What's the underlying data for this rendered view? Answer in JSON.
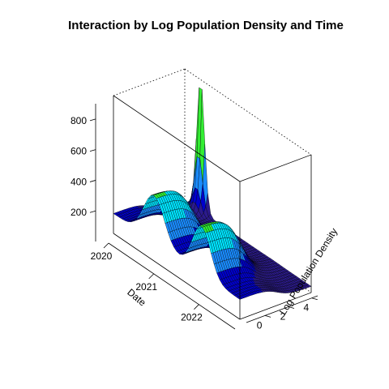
{
  "chart_data": {
    "type": "surface3d",
    "title": "Interaction by Log Population Density and Time",
    "xlabel": "Date",
    "ylabel": "Log Population Density",
    "zlabel": "",
    "x_ticks": [
      "2020",
      "2021",
      "2022"
    ],
    "y_ticks": [
      "0",
      "2",
      "4"
    ],
    "z_ticks": [
      "200",
      "400",
      "600",
      "800"
    ],
    "x_range": [
      "2020",
      "2022.8"
    ],
    "y_range": [
      -1.6,
      4.5
    ],
    "z_range": [
      0,
      900
    ],
    "box_edges": "solid front, dotted back",
    "color_scale": [
      {
        "max": 120,
        "color": "#2b1a8c"
      },
      {
        "max": 200,
        "color": "#0000cc"
      },
      {
        "max": 300,
        "color": "#1a8cff"
      },
      {
        "max": 420,
        "color": "#00e5ff"
      },
      {
        "max": 650,
        "color": "#33ee33"
      },
      {
        "max": 900,
        "color": "#ffee33"
      }
    ],
    "surface_features": [
      {
        "feature": "sharp spike",
        "date": "2020.35",
        "log_density": 4.5,
        "value": 900
      },
      {
        "feature": "first wave ridge",
        "date": "2020.9",
        "log_density": -1.0,
        "value": 430
      },
      {
        "feature": "second wave ridge",
        "date": "2021.95",
        "log_density": -1.0,
        "value": 440
      },
      {
        "feature": "trough",
        "date": "2021.4",
        "log_density": -1.0,
        "value": 160
      },
      {
        "feature": "plateau",
        "date": "2020-2022",
        "log_density": 4.0,
        "value": 40
      }
    ]
  }
}
